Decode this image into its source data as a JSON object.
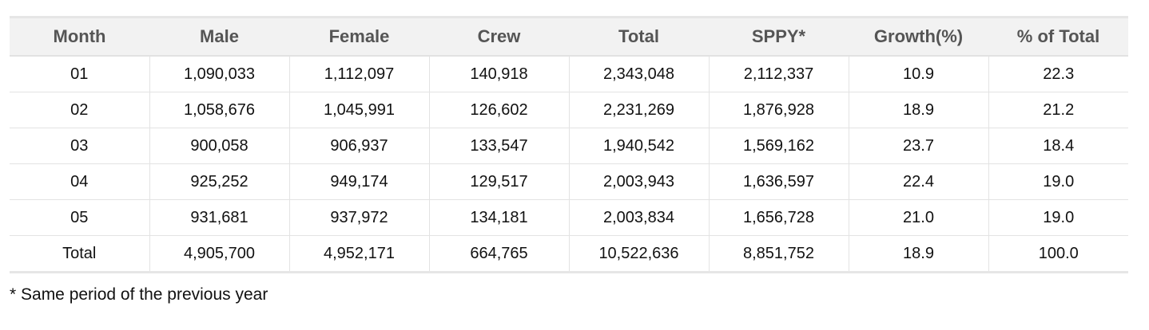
{
  "table": {
    "headers": [
      "Month",
      "Male",
      "Female",
      "Crew",
      "Total",
      "SPPY*",
      "Growth(%)",
      "% of Total"
    ],
    "rows": [
      [
        "01",
        "1,090,033",
        "1,112,097",
        "140,918",
        "2,343,048",
        "2,112,337",
        "10.9",
        "22.3"
      ],
      [
        "02",
        "1,058,676",
        "1,045,991",
        "126,602",
        "2,231,269",
        "1,876,928",
        "18.9",
        "21.2"
      ],
      [
        "03",
        "900,058",
        "906,937",
        "133,547",
        "1,940,542",
        "1,569,162",
        "23.7",
        "18.4"
      ],
      [
        "04",
        "925,252",
        "949,174",
        "129,517",
        "2,003,943",
        "1,636,597",
        "22.4",
        "19.0"
      ],
      [
        "05",
        "931,681",
        "937,972",
        "134,181",
        "2,003,834",
        "1,656,728",
        "21.0",
        "19.0"
      ],
      [
        "Total",
        "4,905,700",
        "4,952,171",
        "664,765",
        "10,522,636",
        "8,851,752",
        "18.9",
        "100.0"
      ]
    ]
  },
  "footnote": "* Same period of the previous year",
  "colors": {
    "header_bg": "#f2f2f2",
    "header_text": "#555555",
    "border": "#e3e3e3"
  }
}
